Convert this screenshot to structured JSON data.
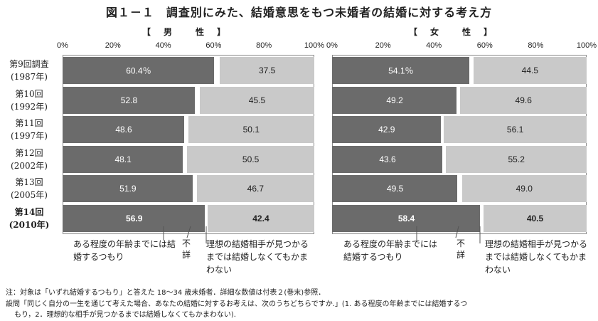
{
  "title": "図１－１　調査別にみた、結婚意思をもつ未婚者の結婚に対する考え方",
  "colors": {
    "series1": "#6b6b6b",
    "series2": "#c9c9c9",
    "series1_text": "#ffffff",
    "series2_text": "#222222"
  },
  "annotations": {
    "series1": "ある程度の年齢までには結婚するつもり",
    "unknown": "不詳",
    "series2_male": "理想の結婚相手が見つかるまでは結婚しなくてもかまわない",
    "series2_female": "理想の結婚相手が見つかるまでは結婚しなくてもかまわない"
  },
  "notes": {
    "line1": "注：対象は「いずれ結婚するつもり」と答えた 18～34 歳未婚者．詳細な数値は付表２(巻末)参照．",
    "line2": "設問「同じく自分の一生を通じて考えた場合、あなたの結婚に対するお考えは、次のうちどちらですか.」(1. ある程度の年齢までには結婚するつ",
    "line3": "もり，2．理想的な相手が見つかるまでは結婚しなくてもかまわない)."
  },
  "chart_data": [
    {
      "type": "bar",
      "orientation": "horizontal-stacked-100",
      "title": "【　男　　性　】",
      "xlim": [
        0,
        100
      ],
      "ticks": [
        "0%",
        "20%",
        "40%",
        "60%",
        "80%",
        "100%"
      ],
      "categories": [
        "第9回調査\n(1987年)",
        "第10回\n(1992年)",
        "第11回\n(1997年)",
        "第12回\n(2002年)",
        "第13回\n(2005年)",
        "第14回\n(2010年)"
      ],
      "series": [
        {
          "name": "ある程度の年齢までには結婚するつもり",
          "values": [
            60.4,
            52.8,
            48.6,
            48.1,
            51.9,
            56.9
          ],
          "labels": [
            "60.4％",
            "52.8",
            "48.6",
            "48.1",
            "51.9",
            "56.9"
          ]
        },
        {
          "name": "理想の結婚相手が見つかるまでは結婚しなくてもかまわない",
          "values": [
            37.5,
            45.5,
            50.1,
            50.5,
            46.7,
            42.4
          ],
          "labels": [
            "37.5",
            "45.5",
            "50.1",
            "50.5",
            "46.7",
            "42.4"
          ]
        }
      ],
      "highlight_last": true
    },
    {
      "type": "bar",
      "orientation": "horizontal-stacked-100",
      "title": "【　女　　性　】",
      "xlim": [
        0,
        100
      ],
      "ticks": [
        "0%",
        "20%",
        "40%",
        "60%",
        "80%",
        "100%"
      ],
      "categories": [
        "第9回調査\n(1987年)",
        "第10回\n(1992年)",
        "第11回\n(1997年)",
        "第12回\n(2002年)",
        "第13回\n(2005年)",
        "第14回\n(2010年)"
      ],
      "series": [
        {
          "name": "ある程度の年齢までには結婚するつもり",
          "values": [
            54.1,
            49.2,
            42.9,
            43.6,
            49.5,
            58.4
          ],
          "labels": [
            "54.1％",
            "49.2",
            "42.9",
            "43.6",
            "49.5",
            "58.4"
          ]
        },
        {
          "name": "理想の結婚相手が見つかるまでは結婚しなくてもかまわない",
          "values": [
            44.5,
            49.6,
            56.1,
            55.2,
            49.0,
            40.5
          ],
          "labels": [
            "44.5",
            "49.6",
            "56.1",
            "55.2",
            "49.0",
            "40.5"
          ]
        }
      ],
      "highlight_last": true
    }
  ]
}
